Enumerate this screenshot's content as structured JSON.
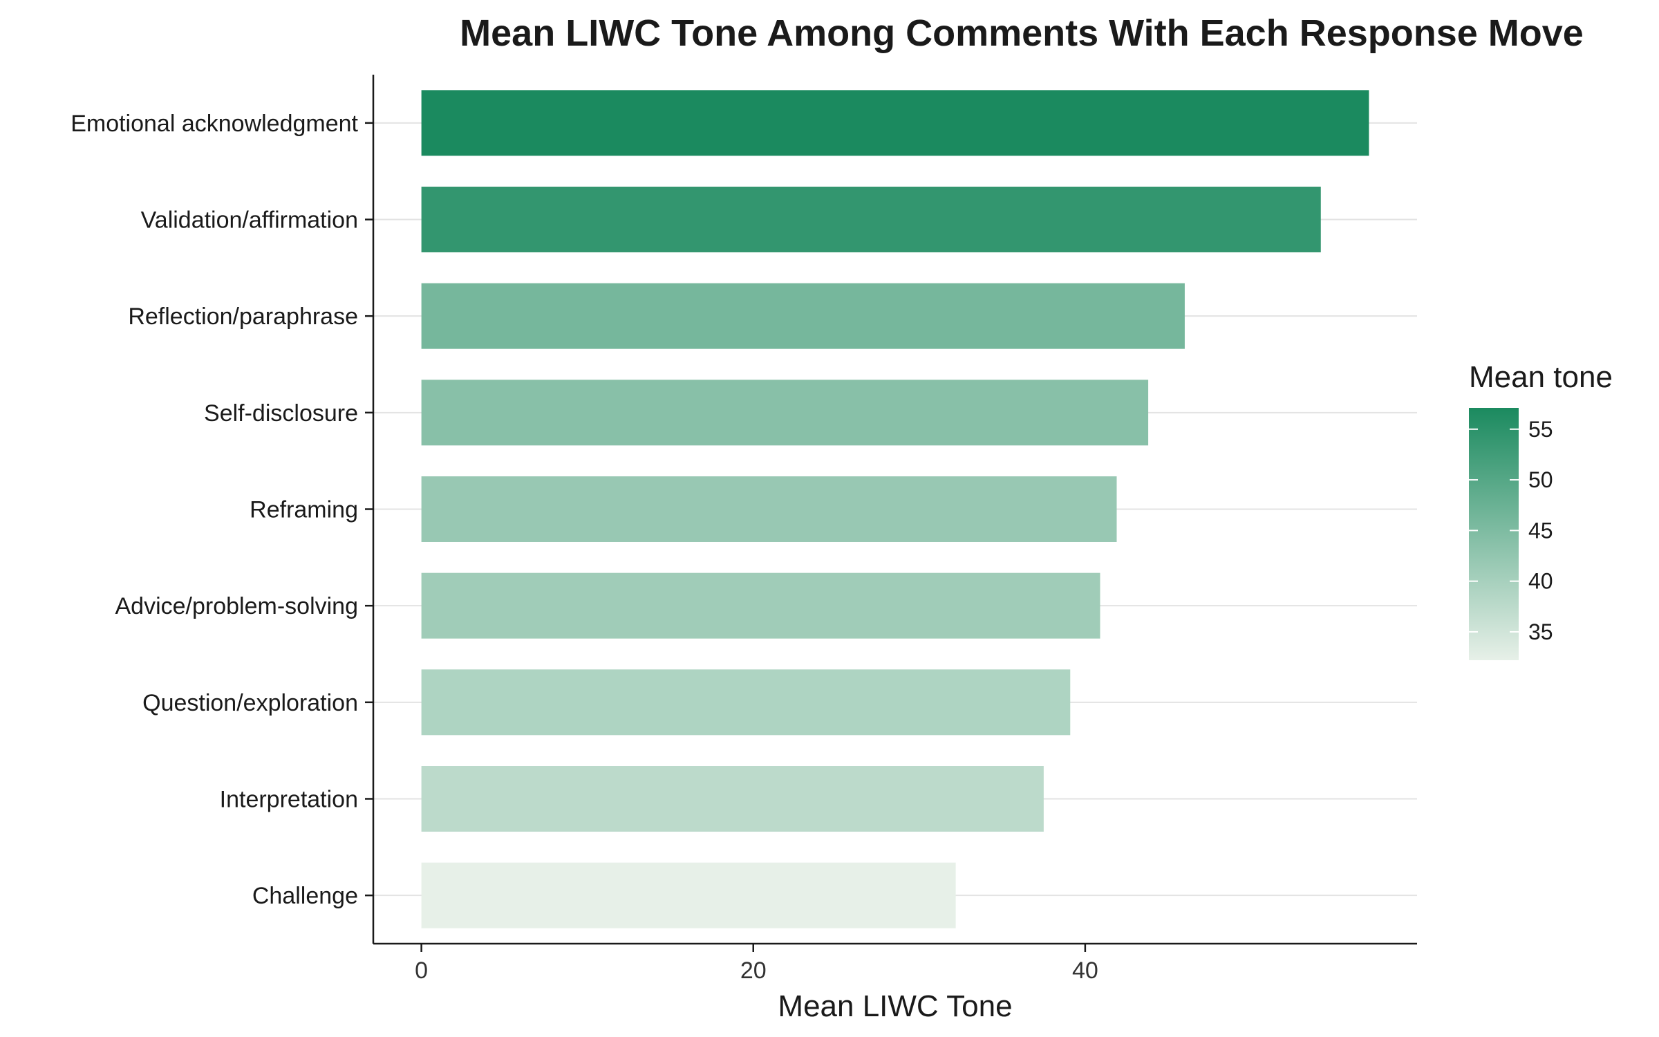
{
  "chart_data": {
    "type": "bar",
    "orientation": "horizontal",
    "title": "Mean LIWC Tone Among Comments With Each Response Move",
    "xlabel": "Mean LIWC Tone",
    "ylabel": "",
    "categories": [
      "Emotional acknowledgment",
      "Validation/affirmation",
      "Reflection/paraphrase",
      "Self-disclosure",
      "Reframing",
      "Advice/problem-solving",
      "Question/exploration",
      "Interpretation",
      "Challenge"
    ],
    "values": [
      57.1,
      54.2,
      46.0,
      43.8,
      41.9,
      40.9,
      39.1,
      37.5,
      32.2
    ],
    "xlim": [
      -2.9,
      60.0
    ],
    "xticks": [
      0,
      20,
      40
    ],
    "xtick_labels": [
      "0",
      "20",
      "40"
    ],
    "grid": "horizontal major gridlines",
    "legend": {
      "title": "Mean tone",
      "placement": "right",
      "type": "colorbar",
      "range": [
        32.2,
        57.1
      ],
      "ticks": [
        35,
        40,
        45,
        50,
        55
      ],
      "tick_labels": [
        "35",
        "40",
        "45",
        "50",
        "55"
      ]
    },
    "colors": {
      "low": "#e7f0e8",
      "high": "#1b8a5f"
    }
  }
}
